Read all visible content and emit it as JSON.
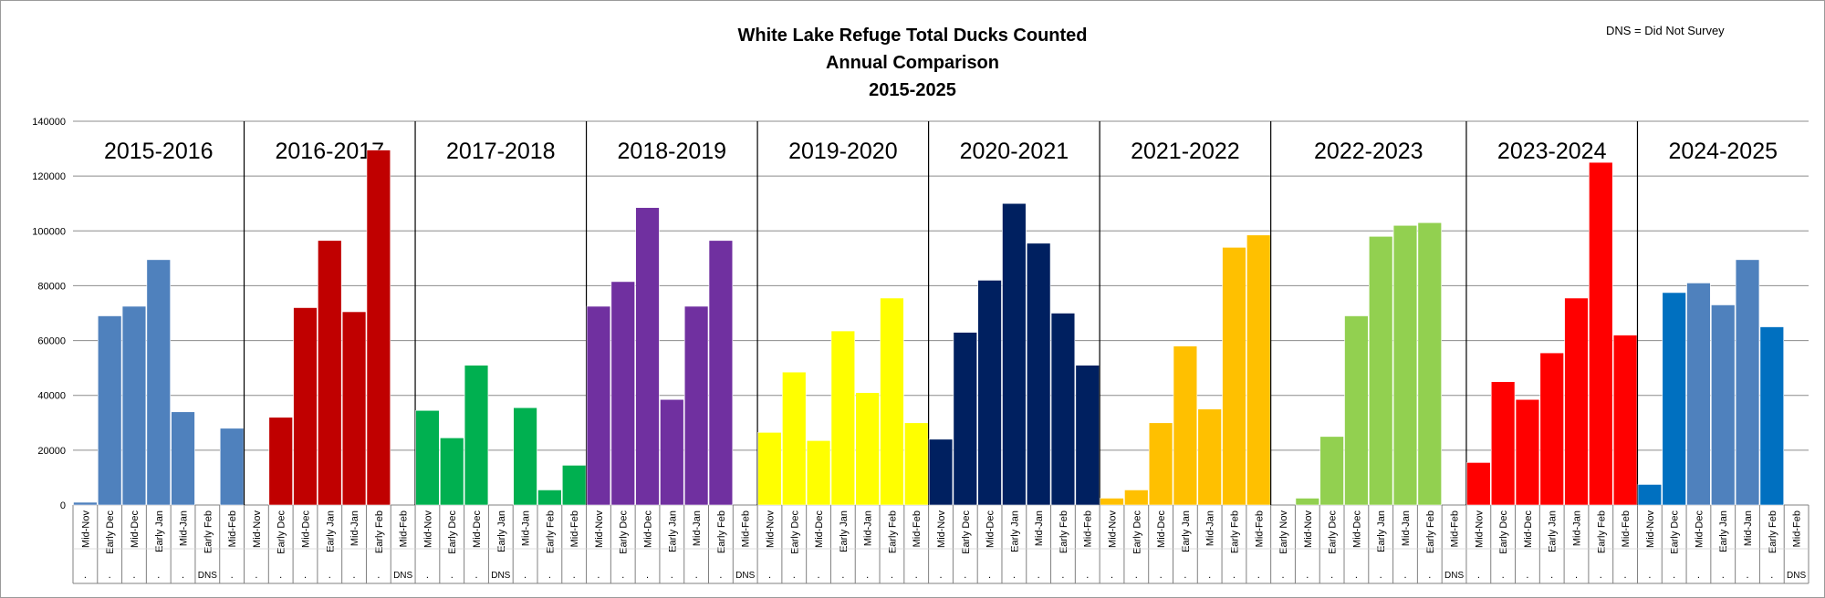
{
  "note": "DNS = Did Not Survey",
  "chart_data": {
    "type": "bar",
    "title": [
      "White Lake Refuge Total Ducks Counted",
      "Annual Comparison",
      "2015-2025"
    ],
    "ylim": [
      0,
      140000
    ],
    "yticks": [
      0,
      20000,
      40000,
      60000,
      80000,
      100000,
      120000,
      140000
    ],
    "grid": true,
    "legend": "none",
    "seasons": [
      {
        "name": "2015-2016",
        "color": "#4F81BD",
        "categories": [
          "Mid-Nov",
          "Early Dec",
          "Mid-Dec",
          "Early Jan",
          "Mid-Jan",
          "Early Feb",
          "Mid-Feb"
        ],
        "values": [
          1000,
          69000,
          72500,
          89500,
          34000,
          null,
          28000
        ],
        "marks": [
          ".",
          ".",
          ".",
          ".",
          ".",
          "DNS",
          "."
        ]
      },
      {
        "name": "2016-2017",
        "color": "#C00000",
        "categories": [
          "Mid-Nov",
          "Early Dec",
          "Mid-Dec",
          "Early Jan",
          "Mid-Jan",
          "Early Feb",
          "Mid-Feb"
        ],
        "values": [
          null,
          32000,
          72000,
          96500,
          70500,
          129500,
          null
        ],
        "marks": [
          ".",
          ".",
          ".",
          ".",
          ".",
          ".",
          "DNS"
        ]
      },
      {
        "name": "2017-2018",
        "color": "#00B050",
        "categories": [
          "Mid-Nov",
          "Early Dec",
          "Mid-Dec",
          "Early Jan",
          "Mid-Jan",
          "Early Feb",
          "Mid-Feb"
        ],
        "values": [
          34500,
          24500,
          51000,
          null,
          35500,
          5500,
          14500
        ],
        "marks": [
          ".",
          ".",
          ".",
          "DNS",
          ".",
          ".",
          "."
        ]
      },
      {
        "name": "2018-2019",
        "color": "#7030A0",
        "categories": [
          "Mid-Nov",
          "Early Dec",
          "Mid-Dec",
          "Early Jan",
          "Mid-Jan",
          "Early Feb",
          "Mid-Feb"
        ],
        "values": [
          72500,
          81500,
          108500,
          38500,
          72500,
          96500,
          null
        ],
        "marks": [
          ".",
          ".",
          ".",
          ".",
          ".",
          ".",
          "DNS"
        ]
      },
      {
        "name": "2019-2020",
        "color": "#FFFF00",
        "categories": [
          "Mid-Nov",
          "Early Dec",
          "Mid-Dec",
          "Early Jan",
          "Mid-Jan",
          "Early Feb",
          "Mid-Feb"
        ],
        "values": [
          26500,
          48500,
          23500,
          63500,
          41000,
          75500,
          30000
        ],
        "marks": [
          ".",
          ".",
          ".",
          ".",
          ".",
          ".",
          "."
        ]
      },
      {
        "name": "2020-2021",
        "color": "#002060",
        "categories": [
          "Mid-Nov",
          "Early Dec",
          "Mid-Dec",
          "Early Jan",
          "Mid-Jan",
          "Early Feb",
          "Mid-Feb"
        ],
        "values": [
          24000,
          63000,
          82000,
          110000,
          95500,
          70000,
          51000
        ],
        "marks": [
          ".",
          ".",
          ".",
          ".",
          ".",
          ".",
          "."
        ]
      },
      {
        "name": "2021-2022",
        "color": "#FFC000",
        "categories": [
          "Mid-Nov",
          "Early Dec",
          "Mid-Dec",
          "Early Jan",
          "Mid-Jan",
          "Early Feb",
          "Mid-Feb"
        ],
        "values": [
          2500,
          5500,
          30000,
          58000,
          35000,
          94000,
          98500
        ],
        "marks": [
          ".",
          ".",
          ".",
          ".",
          ".",
          ".",
          "."
        ]
      },
      {
        "name": "2022-2023",
        "color": "#92D050",
        "categories": [
          "Early Nov",
          "Mid-Nov",
          "Early Dec",
          "Mid-Dec",
          "Early Jan",
          "Mid-Jan",
          "Early Feb",
          "Mid-Feb"
        ],
        "values": [
          null,
          2500,
          25000,
          69000,
          98000,
          102000,
          103000,
          null
        ],
        "marks": [
          ".",
          ".",
          ".",
          ".",
          ".",
          ".",
          ".",
          "DNS"
        ]
      },
      {
        "name": "2023-2024",
        "color": "#FF0000",
        "categories": [
          "Mid-Nov",
          "Early Dec",
          "Mid-Dec",
          "Early Jan",
          "Mid-Jan",
          "Early Feb",
          "Mid-Feb"
        ],
        "values": [
          15500,
          45000,
          38500,
          55500,
          75500,
          125000,
          62000
        ],
        "marks": [
          ".",
          ".",
          ".",
          ".",
          ".",
          ".",
          "."
        ]
      },
      {
        "name": "2024-2025",
        "color": "#0070C0",
        "categories": [
          "Mid-Nov",
          "Early Dec",
          "Mid-Dec",
          "Early Jan",
          "Mid-Jan",
          "Early Feb",
          "Mid-Feb"
        ],
        "values": [
          7500,
          77500,
          81000,
          73000,
          89500,
          65000,
          null
        ],
        "marks": [
          ".",
          ".",
          ".",
          ".",
          ".",
          ".",
          "DNS"
        ],
        "bar_colors": [
          "#0070C0",
          "#0070C0",
          "#4F81BD",
          "#4F81BD",
          "#4F81BD",
          "#0070C0",
          "#0070C0"
        ]
      }
    ]
  }
}
